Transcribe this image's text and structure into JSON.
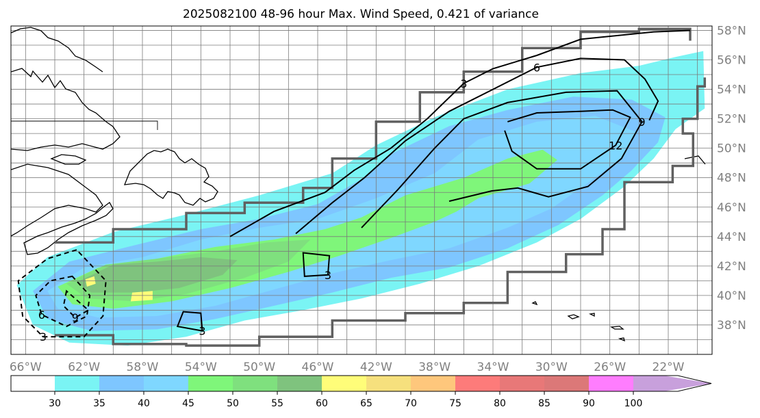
{
  "chart_data": {
    "type": "heatmap",
    "title": "2025082100 48-96 hour Max. Wind Speed, 0.421 of variance",
    "x_ticks": [
      "66°W",
      "62°W",
      "58°W",
      "54°W",
      "50°W",
      "46°W",
      "42°W",
      "38°W",
      "34°W",
      "30°W",
      "26°W",
      "22°W"
    ],
    "y_ticks": [
      "38°N",
      "40°N",
      "42°N",
      "44°N",
      "46°N",
      "48°N",
      "50°N",
      "52°N",
      "54°N",
      "56°N",
      "58°N"
    ],
    "lon_range": [
      -67,
      -19
    ],
    "lat_range": [
      36,
      58.3
    ],
    "grid": true,
    "colorbar": {
      "orientation": "horizontal",
      "extend": "max",
      "labels": [
        "30",
        "35",
        "40",
        "45",
        "50",
        "55",
        "60",
        "65",
        "70",
        "75",
        "80",
        "85",
        "90",
        "100"
      ],
      "bins": [
        {
          "from": 30,
          "to": 35,
          "color": "#7af4f4"
        },
        {
          "from": 35,
          "to": 40,
          "color": "#7ec6ff"
        },
        {
          "from": 40,
          "to": 45,
          "color": "#7fd7ff"
        },
        {
          "from": 45,
          "to": 50,
          "color": "#7ff67a"
        },
        {
          "from": 50,
          "to": 55,
          "color": "#7fe07e"
        },
        {
          "from": 55,
          "to": 60,
          "color": "#7fc37e"
        },
        {
          "from": 60,
          "to": 65,
          "color": "#fffd79"
        },
        {
          "from": 65,
          "to": 70,
          "color": "#f6e07d"
        },
        {
          "from": 70,
          "to": 75,
          "color": "#fec77c"
        },
        {
          "from": 75,
          "to": 80,
          "color": "#fd7b7a"
        },
        {
          "from": 80,
          "to": 85,
          "color": "#e87878"
        },
        {
          "from": 85,
          "to": 90,
          "color": "#dc7878"
        },
        {
          "from": 90,
          "to": 100,
          "color": "#ff7dfe"
        },
        {
          "from": 100,
          "to": null,
          "color": "#c8a0dc"
        }
      ]
    },
    "filled_regions": [
      {
        "level": 30,
        "color": "#7af4f4",
        "points": [
          [
            -66.6,
            40.7
          ],
          [
            -64.5,
            42.6
          ],
          [
            -60,
            44.3
          ],
          [
            -55,
            45.5
          ],
          [
            -50,
            46.8
          ],
          [
            -45,
            48.3
          ],
          [
            -42,
            50.2
          ],
          [
            -38,
            52.1
          ],
          [
            -33,
            54
          ],
          [
            -28,
            55.1
          ],
          [
            -24,
            55.6
          ],
          [
            -21.5,
            56.2
          ],
          [
            -19.6,
            56.6
          ],
          [
            -19.5,
            52.7
          ],
          [
            -21.5,
            51.3
          ],
          [
            -23,
            49.3
          ],
          [
            -25,
            47.4
          ],
          [
            -28,
            45.2
          ],
          [
            -31,
            43.6
          ],
          [
            -35,
            42
          ],
          [
            -39,
            40.8
          ],
          [
            -43,
            39.8
          ],
          [
            -47,
            39
          ],
          [
            -51,
            38.3
          ],
          [
            -55,
            37.2
          ],
          [
            -59,
            36.6
          ],
          [
            -63,
            36.8
          ],
          [
            -65.5,
            38
          ]
        ]
      },
      {
        "level": 35,
        "color": "#7ec6ff",
        "points": [
          [
            -65.5,
            40.3
          ],
          [
            -63,
            42.3
          ],
          [
            -59,
            43.3
          ],
          [
            -54,
            44.5
          ],
          [
            -50,
            45.2
          ],
          [
            -46,
            46.2
          ],
          [
            -43,
            47.9
          ],
          [
            -41,
            49.6
          ],
          [
            -37,
            51.5
          ],
          [
            -33,
            52.6
          ],
          [
            -28.5,
            53.5
          ],
          [
            -24.5,
            53.3
          ],
          [
            -22.2,
            52.1
          ],
          [
            -22.7,
            50.4
          ],
          [
            -24.5,
            48.5
          ],
          [
            -26.5,
            46.8
          ],
          [
            -29.5,
            44.8
          ],
          [
            -33,
            43.2
          ],
          [
            -37,
            41.9
          ],
          [
            -41,
            41.2
          ],
          [
            -45,
            40.2
          ],
          [
            -49,
            39.3
          ],
          [
            -53,
            38.4
          ],
          [
            -57,
            37.7
          ],
          [
            -61.5,
            37.6
          ],
          [
            -64.5,
            38.4
          ]
        ]
      },
      {
        "level": 40,
        "color": "#7fd7ff",
        "points": [
          [
            -64.5,
            40.3
          ],
          [
            -62,
            41.9
          ],
          [
            -58,
            42.6
          ],
          [
            -54,
            43.8
          ],
          [
            -50,
            44.6
          ],
          [
            -46,
            45.2
          ],
          [
            -42,
            46.6
          ],
          [
            -38,
            48.3
          ],
          [
            -35,
            50.6
          ],
          [
            -31,
            51.8
          ],
          [
            -27,
            52.2
          ],
          [
            -24.2,
            51.1
          ],
          [
            -25,
            49.5
          ],
          [
            -27,
            48
          ],
          [
            -30,
            45.9
          ],
          [
            -33,
            44.6
          ],
          [
            -37,
            43.2
          ],
          [
            -41,
            42.4
          ],
          [
            -45,
            41.5
          ],
          [
            -49,
            40.4
          ],
          [
            -53,
            39.3
          ],
          [
            -57,
            38.6
          ],
          [
            -61,
            38.5
          ],
          [
            -63.8,
            39.1
          ]
        ]
      },
      {
        "level": 45,
        "color": "#7ff67a",
        "points": [
          [
            -63.8,
            40.6
          ],
          [
            -61,
            41.9
          ],
          [
            -57,
            42.5
          ],
          [
            -53,
            43.3
          ],
          [
            -49,
            43.8
          ],
          [
            -45.5,
            44.5
          ],
          [
            -43,
            45.3
          ],
          [
            -40,
            46.8
          ],
          [
            -36,
            48
          ],
          [
            -33,
            49.3
          ],
          [
            -30.6,
            49.9
          ],
          [
            -29.6,
            49.2
          ],
          [
            -31.5,
            47.6
          ],
          [
            -35,
            46.6
          ],
          [
            -36.5,
            45.7
          ],
          [
            -38,
            45
          ],
          [
            -41,
            43.9
          ],
          [
            -44.5,
            42.7
          ],
          [
            -48,
            41.6
          ],
          [
            -52,
            40.5
          ],
          [
            -56,
            39.6
          ],
          [
            -60,
            39.1
          ],
          [
            -62.8,
            39.4
          ]
        ]
      },
      {
        "level": 50,
        "color": "#7fe07e",
        "points": [
          [
            -63.2,
            40.8
          ],
          [
            -60.5,
            42.1
          ],
          [
            -57,
            42.5
          ],
          [
            -53,
            43
          ],
          [
            -49.5,
            43.6
          ],
          [
            -46.5,
            43.8
          ],
          [
            -48,
            42.3
          ],
          [
            -51,
            41.2
          ],
          [
            -55,
            40.1
          ],
          [
            -58.5,
            39.6
          ],
          [
            -61.8,
            39.8
          ]
        ]
      },
      {
        "level": 55,
        "color": "#7fc37e",
        "points": [
          [
            -62.5,
            40.9
          ],
          [
            -60,
            42.1
          ],
          [
            -57,
            42.3
          ],
          [
            -54,
            42.6
          ],
          [
            -51.5,
            42.4
          ],
          [
            -52.5,
            41.4
          ],
          [
            -55.5,
            40.5
          ],
          [
            -58.5,
            40.2
          ],
          [
            -61.5,
            40.2
          ]
        ]
      },
      {
        "level": 60,
        "color": "#fffd79",
        "points": [
          [
            -58.7,
            40.2
          ],
          [
            -57.3,
            40.3
          ],
          [
            -57.3,
            39.7
          ],
          [
            -58.8,
            39.6
          ]
        ]
      },
      {
        "level": 60,
        "color": "#fffd79",
        "points": [
          [
            -61.9,
            41.1
          ],
          [
            -61.3,
            41.3
          ],
          [
            -61.2,
            40.8
          ],
          [
            -61.8,
            40.6
          ]
        ]
      }
    ],
    "contours": [
      {
        "label": "3",
        "style": "solid",
        "points": [
          [
            -52,
            44
          ],
          [
            -49,
            45.7
          ],
          [
            -45.5,
            47
          ],
          [
            -43.5,
            48.5
          ],
          [
            -41,
            50
          ],
          [
            -38.5,
            52
          ],
          [
            -36,
            54.4
          ],
          [
            -34,
            55.4
          ],
          [
            -31,
            56.3
          ],
          [
            -28,
            57.4
          ],
          [
            -23,
            57.9
          ],
          [
            -20.5,
            58
          ]
        ]
      },
      {
        "label": "6",
        "style": "solid",
        "points": [
          [
            -47.5,
            44.2
          ],
          [
            -45,
            46.3
          ],
          [
            -42.8,
            48
          ],
          [
            -40,
            50.5
          ],
          [
            -37,
            52.5
          ],
          [
            -34,
            54
          ],
          [
            -31,
            55.5
          ],
          [
            -28,
            56.1
          ],
          [
            -25,
            56
          ],
          [
            -23.6,
            54.7
          ],
          [
            -22.7,
            53.2
          ],
          [
            -23.3,
            51.9
          ]
        ]
      },
      {
        "label": "9",
        "style": "solid",
        "points": [
          [
            -43,
            44.6
          ],
          [
            -40.5,
            47.2
          ],
          [
            -38,
            50
          ],
          [
            -36,
            52
          ],
          [
            -33,
            53.1
          ],
          [
            -29,
            53.8
          ],
          [
            -25.5,
            53.9
          ],
          [
            -23.8,
            51.8
          ],
          [
            -25.2,
            49.3
          ],
          [
            -27.5,
            47.4
          ],
          [
            -30.2,
            46.7
          ],
          [
            -32.3,
            47.3
          ],
          [
            -34.1,
            47.1
          ],
          [
            -37,
            46.4
          ]
        ]
      },
      {
        "label": "12",
        "style": "solid",
        "points": [
          [
            -33,
            51.8
          ],
          [
            -31,
            52.4
          ],
          [
            -28,
            52.5
          ],
          [
            -25.8,
            52.6
          ],
          [
            -24.6,
            52.1
          ],
          [
            -25.6,
            50.2
          ],
          [
            -28,
            48.6
          ],
          [
            -31,
            48.6
          ],
          [
            -32.7,
            49.8
          ],
          [
            -33.2,
            51.2
          ]
        ]
      },
      {
        "label": "3",
        "style": "solid",
        "points": [
          [
            -47,
            42.9
          ],
          [
            -45.2,
            42.7
          ],
          [
            -45.3,
            41.4
          ],
          [
            -46.9,
            41.3
          ]
        ]
      },
      {
        "label": "3",
        "style": "solid",
        "points": [
          [
            -55.2,
            38.9
          ],
          [
            -54,
            38.8
          ],
          [
            -53.9,
            37.6
          ],
          [
            -55.6,
            37.9
          ]
        ]
      },
      {
        "label": "3",
        "style": "dashed",
        "points": [
          [
            -62.5,
            43.1
          ],
          [
            -64.5,
            42.5
          ],
          [
            -66.5,
            41
          ],
          [
            -66.2,
            38.6
          ],
          [
            -64.8,
            37.2
          ],
          [
            -62,
            37.2
          ],
          [
            -60.7,
            38.6
          ],
          [
            -60.5,
            41
          ]
        ]
      },
      {
        "label": "6",
        "style": "dashed",
        "points": [
          [
            -62.8,
            41.3
          ],
          [
            -64.3,
            41
          ],
          [
            -65.3,
            40
          ],
          [
            -64.9,
            38.7
          ],
          [
            -63.2,
            37.9
          ],
          [
            -61.8,
            38.6
          ],
          [
            -61.6,
            40
          ]
        ]
      },
      {
        "label": "9",
        "style": "dashed",
        "points": [
          [
            -63.2,
            40.3
          ],
          [
            -63.4,
            39.3
          ],
          [
            -62.6,
            38.5
          ],
          [
            -61.7,
            39
          ]
        ]
      }
    ],
    "significance_boundary": {
      "color": "#606060",
      "upper": [
        [
          -64,
          43.6
        ],
        [
          -60,
          44.5
        ],
        [
          -55,
          45.6
        ],
        [
          -51,
          46.3
        ],
        [
          -47,
          47.3
        ],
        [
          -45,
          49.3
        ],
        [
          -42,
          51.8
        ],
        [
          -39,
          53.8
        ],
        [
          -36,
          55.2
        ],
        [
          -32,
          56.8
        ],
        [
          -28,
          57.9
        ],
        [
          -24,
          58.1
        ],
        [
          -20.5,
          57.3
        ]
      ],
      "lower": [
        [
          -64,
          37.3
        ],
        [
          -60,
          36.7
        ],
        [
          -55,
          36.6
        ],
        [
          -50,
          37.2
        ],
        [
          -45,
          38.3
        ],
        [
          -40,
          38.8
        ],
        [
          -36,
          39.5
        ],
        [
          -33,
          41.6
        ],
        [
          -29,
          42.8
        ],
        [
          -26.5,
          44.5
        ],
        [
          -25,
          47.7
        ],
        [
          -21.7,
          48.8
        ],
        [
          -20.3,
          51
        ],
        [
          -21,
          52
        ],
        [
          -20,
          54.2
        ],
        [
          -19.5,
          54.8
        ]
      ]
    }
  }
}
